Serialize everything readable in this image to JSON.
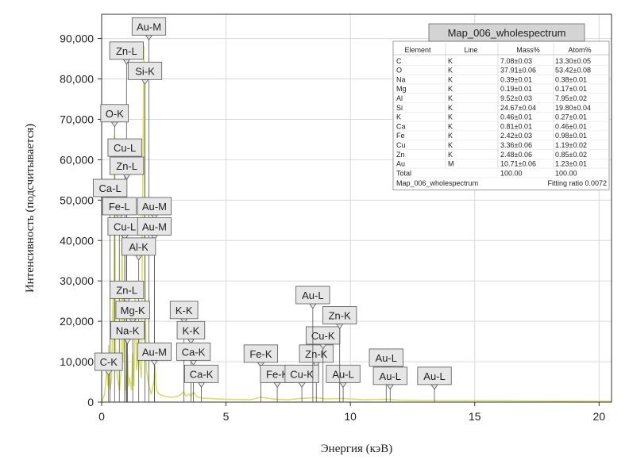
{
  "chart_data": {
    "type": "line",
    "xlabel": "Энергия (кэВ)",
    "ylabel": "Интенсивность (подсчитывается)",
    "xlim": [
      0,
      20.5
    ],
    "ylim": [
      0,
      96000
    ],
    "x_ticks": [
      0,
      5,
      10,
      15,
      20
    ],
    "y_ticks": [
      0,
      10000,
      20000,
      30000,
      40000,
      50000,
      60000,
      70000,
      80000,
      90000
    ],
    "y_tick_labels": [
      "0",
      "10,000",
      "20,000",
      "30,000",
      "40,000",
      "50,000",
      "60,000",
      "70,000",
      "80,000",
      "90,000"
    ],
    "grid": true,
    "line_color": "#d8e06a",
    "series": [
      {
        "name": "Map_006_wholespectrum",
        "x": [
          0.0,
          0.12,
          0.2,
          0.26,
          0.28,
          0.3,
          0.34,
          0.4,
          0.46,
          0.5,
          0.52,
          0.56,
          0.6,
          0.66,
          0.72,
          0.78,
          0.82,
          0.86,
          0.9,
          0.93,
          0.96,
          1.0,
          1.04,
          1.08,
          1.12,
          1.2,
          1.25,
          1.3,
          1.35,
          1.4,
          1.45,
          1.49,
          1.53,
          1.6,
          1.66,
          1.7,
          1.74,
          1.8,
          1.9,
          2.0,
          2.1,
          2.15,
          2.2,
          2.3,
          2.5,
          2.8,
          3.1,
          3.3,
          3.4,
          3.5,
          3.6,
          3.69,
          3.8,
          3.9,
          4.0,
          4.3,
          5.0,
          6.0,
          6.4,
          7.0,
          7.5,
          8.0,
          8.6,
          9.0,
          9.7,
          10.5,
          11.4,
          12.0,
          13.4,
          15.0,
          17.0,
          20.0,
          20.5
        ],
        "values": [
          0,
          2000,
          8000,
          4000,
          14000,
          6000,
          3000,
          6000,
          26000,
          12000,
          66000,
          14000,
          8000,
          5000,
          3000,
          7000,
          45000,
          10000,
          30000,
          8000,
          3000,
          6000,
          12000,
          4000,
          6000,
          3000,
          12000,
          4000,
          30000,
          8000,
          10000,
          20000,
          10000,
          6000,
          60000,
          88000,
          30000,
          8000,
          4000,
          2000,
          5000,
          9000,
          3000,
          2000,
          1500,
          1200,
          1500,
          2500,
          1500,
          2000,
          1500,
          2500,
          1500,
          1200,
          1000,
          900,
          700,
          600,
          1200,
          700,
          600,
          900,
          1100,
          800,
          900,
          600,
          700,
          500,
          400,
          400,
          300,
          200,
          200
        ]
      }
    ],
    "annotations": [
      {
        "text": "Au-M",
        "x": 1.9,
        "y": 93000
      },
      {
        "text": "Zn-L",
        "x": 1.0,
        "y": 87000
      },
      {
        "text": "Si-K",
        "x": 1.74,
        "y": 82000
      },
      {
        "text": "O-K",
        "x": 0.52,
        "y": 71500
      },
      {
        "text": "Cu-L",
        "x": 0.93,
        "y": 63000
      },
      {
        "text": "Zn-L",
        "x": 1.01,
        "y": 58500
      },
      {
        "text": "Ca-L",
        "x": 0.34,
        "y": 53000
      },
      {
        "text": "Fe-L",
        "x": 0.71,
        "y": 48500
      },
      {
        "text": "Au-M",
        "x": 2.12,
        "y": 48500
      },
      {
        "text": "Cu-L",
        "x": 0.93,
        "y": 43500
      },
      {
        "text": "Au-M",
        "x": 2.12,
        "y": 43500
      },
      {
        "text": "Al-K",
        "x": 1.49,
        "y": 38500
      },
      {
        "text": "Zn-L",
        "x": 1.01,
        "y": 27800
      },
      {
        "text": "Mg-K",
        "x": 1.25,
        "y": 22800
      },
      {
        "text": "K-K",
        "x": 3.31,
        "y": 22800
      },
      {
        "text": "Na-K",
        "x": 1.04,
        "y": 17800
      },
      {
        "text": "K-K",
        "x": 3.59,
        "y": 17800
      },
      {
        "text": "Au-M",
        "x": 2.12,
        "y": 12500
      },
      {
        "text": "Ca-K",
        "x": 3.69,
        "y": 12500
      },
      {
        "text": "C-K",
        "x": 0.28,
        "y": 10000
      },
      {
        "text": "Ca-K",
        "x": 4.01,
        "y": 7000
      },
      {
        "text": "Fe-K",
        "x": 6.4,
        "y": 12000
      },
      {
        "text": "Fe-K",
        "x": 7.06,
        "y": 7000
      },
      {
        "text": "Zn-K",
        "x": 8.63,
        "y": 12000
      },
      {
        "text": "Cu-K",
        "x": 8.05,
        "y": 7000
      },
      {
        "text": "Cu-K",
        "x": 8.9,
        "y": 16500
      },
      {
        "text": "Au-L",
        "x": 9.71,
        "y": 7000
      },
      {
        "text": "Au-L",
        "x": 8.49,
        "y": 26500
      },
      {
        "text": "Zn-K",
        "x": 9.57,
        "y": 21500
      },
      {
        "text": "Au-L",
        "x": 11.44,
        "y": 11000
      },
      {
        "text": "Au-L",
        "x": 11.6,
        "y": 6500
      },
      {
        "text": "Au-L",
        "x": 13.38,
        "y": 6500
      }
    ],
    "table": {
      "title": "Map_006_wholespectrum",
      "headers": [
        "Element",
        "Line",
        "Mass%",
        "Atom%"
      ],
      "rows": [
        [
          "C",
          "K",
          "7.08±0.03",
          "13.30±0.05"
        ],
        [
          "O",
          "K",
          "37.91±0.06",
          "53.42±0.08"
        ],
        [
          "Na",
          "K",
          "0.39±0.01",
          "0.38±0.01"
        ],
        [
          "Mg",
          "K",
          "0.19±0.01",
          "0.17±0.01"
        ],
        [
          "Al",
          "K",
          "9.52±0.03",
          "7.95±0.02"
        ],
        [
          "Si",
          "K",
          "24.67±0.04",
          "19.80±0.04"
        ],
        [
          "K",
          "K",
          "0.46±0.01",
          "0.27±0.01"
        ],
        [
          "Ca",
          "K",
          "0.81±0.01",
          "0.46±0.01"
        ],
        [
          "Fe",
          "K",
          "2.42±0.03",
          "0.98±0.01"
        ],
        [
          "Cu",
          "K",
          "3.36±0.06",
          "1.19±0.02"
        ],
        [
          "Zn",
          "K",
          "2.48±0.06",
          "0.85±0.02"
        ],
        [
          "Au",
          "M",
          "10.71±0.06",
          "1.23±0.01"
        ],
        [
          "Total",
          "",
          "100.00",
          "100.00"
        ]
      ],
      "footer_left": "Map_006_wholespectrum",
      "footer_right": "Fitting ratio 0.0072"
    }
  }
}
